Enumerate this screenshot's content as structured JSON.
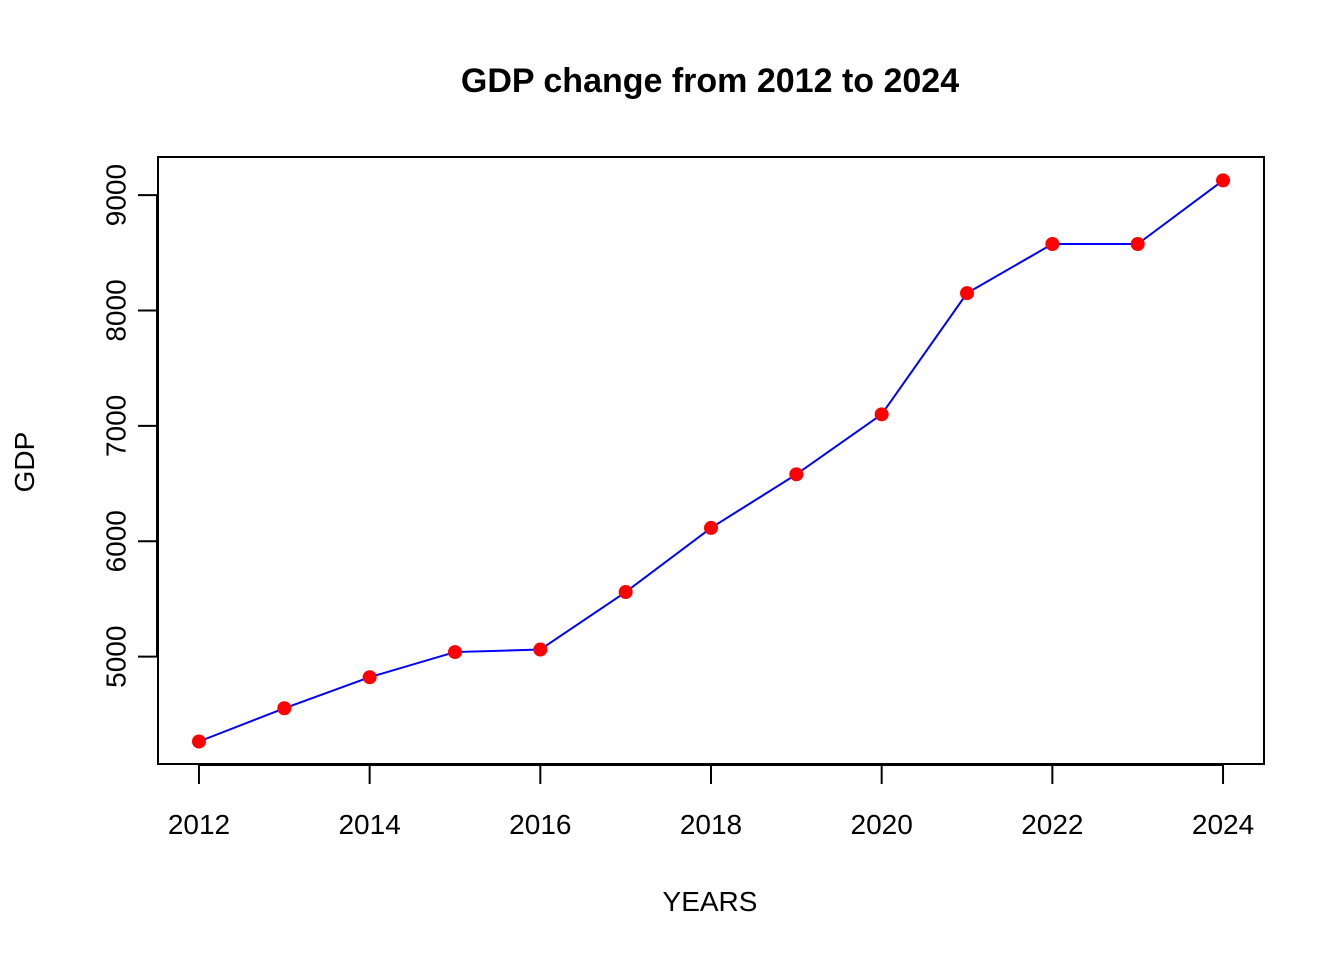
{
  "chart_data": {
    "type": "line",
    "title": "GDP change from 2012 to 2024",
    "xlabel": "YEARS",
    "ylabel": "GDP",
    "x": [
      2012,
      2013,
      2014,
      2015,
      2016,
      2017,
      2018,
      2019,
      2020,
      2021,
      2022,
      2023,
      2024
    ],
    "series": [
      {
        "values": [
          4265,
          4553,
          4822,
          5040,
          5062,
          5560,
          6116,
          6580,
          7100,
          8150,
          8576,
          8576,
          9127
        ],
        "line_color": "#0000ff",
        "marker_color": "#ff0000"
      }
    ],
    "xlim": [
      2011.52,
      2024.48
    ],
    "ylim": [
      4070,
      9330
    ],
    "x_ticks": [
      "2012",
      "2014",
      "2016",
      "2018",
      "2020",
      "2022",
      "2024"
    ],
    "y_ticks": [
      "5000",
      "6000",
      "7000",
      "8000",
      "9000"
    ],
    "grid": false,
    "legend": "none"
  }
}
